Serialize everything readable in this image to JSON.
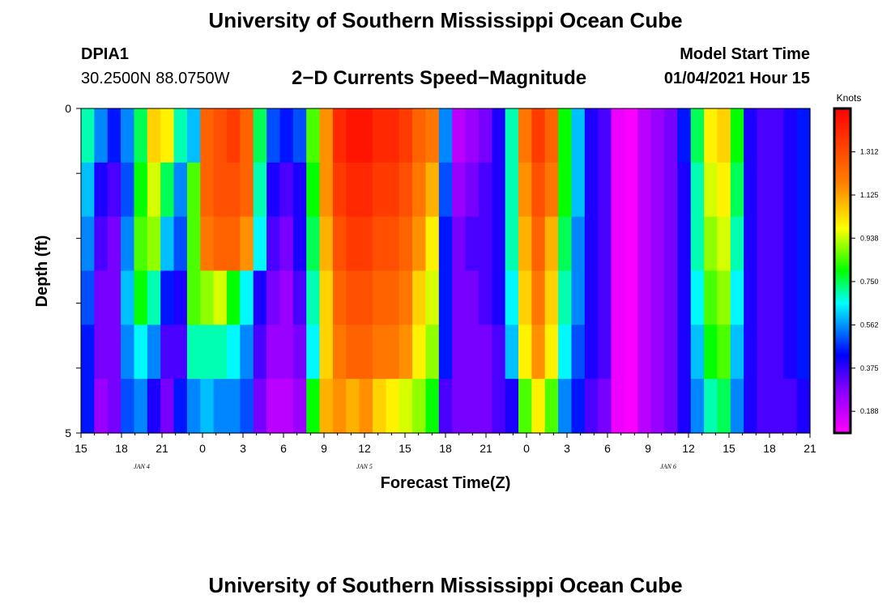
{
  "header": {
    "title": "University of Southern Mississippi Ocean Cube",
    "station_id": "DPIA1",
    "coordinates": "30.2500N 88.0750W",
    "subtitle": "2−D Currents Speed−Magnitude",
    "model_start_label": "Model Start Time",
    "model_start_value": "01/04/2021 Hour 15"
  },
  "footer": {
    "title": "University of Southern Mississippi Ocean Cube"
  },
  "chart_data": {
    "type": "heatmap",
    "title": "2−D Currents Speed−Magnitude",
    "xlabel": "Forecast Time(Z)",
    "ylabel": "Depth (ft)",
    "ylim": [
      0,
      5
    ],
    "y_tick_labels": [
      "0",
      "5"
    ],
    "x_tick_labels": [
      "15",
      "18",
      "21",
      "0",
      "3",
      "6",
      "9",
      "12",
      "15",
      "18",
      "21",
      "0",
      "3",
      "6",
      "9",
      "12",
      "15",
      "18",
      "21"
    ],
    "date_labels": [
      {
        "label": "JAN 4",
        "hour_index": 4.5
      },
      {
        "label": "JAN 5",
        "hour_index": 21
      },
      {
        "label": "JAN 6",
        "hour_index": 43.5
      }
    ],
    "colorbar": {
      "title": "Knots",
      "min": 0.094,
      "max": 1.5,
      "tick_values": [
        0.188,
        0.375,
        0.562,
        0.75,
        0.938,
        1.125,
        1.312
      ],
      "tick_labels": [
        "0.188",
        "0.375",
        "0.562",
        "0.750",
        "0.938",
        "1.125",
        "1.312"
      ]
    },
    "speed_profiles": [
      [
        0.7,
        0.55,
        0.45,
        0.55,
        0.75,
        1.05,
        1.0,
        0.7,
        0.6,
        1.25,
        1.3,
        1.35,
        1.25,
        0.75,
        0.5,
        0.45,
        0.5,
        0.85,
        1.15,
        1.4,
        1.45,
        1.45,
        1.4,
        1.4,
        1.35,
        1.25,
        1.2,
        0.55,
        0.2,
        0.25,
        0.3,
        0.4,
        0.7,
        1.2,
        1.35,
        1.25,
        0.8,
        0.6,
        0.4,
        0.35,
        0.12,
        0.1,
        0.2,
        0.25,
        0.3,
        0.45,
        0.75,
        1.0,
        1.05,
        0.8,
        0.4,
        0.35,
        0.35,
        0.4,
        0.45
      ],
      [
        0.6,
        0.4,
        0.35,
        0.5,
        0.8,
        0.95,
        0.75,
        0.55,
        0.85,
        1.25,
        1.3,
        1.3,
        1.25,
        0.7,
        0.4,
        0.35,
        0.4,
        0.8,
        1.15,
        1.35,
        1.4,
        1.4,
        1.35,
        1.35,
        1.3,
        1.2,
        1.1,
        0.5,
        0.25,
        0.3,
        0.35,
        0.4,
        0.7,
        1.15,
        1.3,
        1.2,
        0.8,
        0.6,
        0.4,
        0.35,
        0.12,
        0.1,
        0.2,
        0.25,
        0.3,
        0.4,
        0.7,
        0.95,
        1.0,
        0.75,
        0.4,
        0.35,
        0.35,
        0.4,
        0.45
      ],
      [
        0.55,
        0.35,
        0.3,
        0.55,
        0.85,
        0.9,
        0.6,
        0.5,
        0.85,
        1.2,
        1.25,
        1.25,
        1.15,
        0.65,
        0.35,
        0.3,
        0.4,
        0.75,
        1.1,
        1.3,
        1.35,
        1.35,
        1.3,
        1.3,
        1.25,
        1.15,
        1.0,
        0.45,
        0.3,
        0.35,
        0.35,
        0.4,
        0.7,
        1.1,
        1.25,
        1.1,
        0.75,
        0.55,
        0.4,
        0.35,
        0.12,
        0.1,
        0.2,
        0.25,
        0.3,
        0.4,
        0.7,
        0.9,
        0.95,
        0.7,
        0.4,
        0.35,
        0.35,
        0.4,
        0.45
      ],
      [
        0.5,
        0.3,
        0.3,
        0.6,
        0.8,
        0.7,
        0.45,
        0.4,
        0.85,
        0.9,
        0.95,
        0.8,
        0.65,
        0.4,
        0.3,
        0.25,
        0.35,
        0.7,
        1.05,
        1.25,
        1.3,
        1.3,
        1.25,
        1.25,
        1.2,
        1.05,
        0.95,
        0.45,
        0.3,
        0.3,
        0.35,
        0.4,
        0.65,
        1.05,
        1.2,
        1.05,
        0.7,
        0.55,
        0.4,
        0.35,
        0.12,
        0.1,
        0.2,
        0.25,
        0.3,
        0.4,
        0.65,
        0.85,
        0.9,
        0.65,
        0.4,
        0.35,
        0.35,
        0.4,
        0.45
      ],
      [
        0.45,
        0.3,
        0.3,
        0.55,
        0.65,
        0.55,
        0.35,
        0.35,
        0.7,
        0.7,
        0.7,
        0.65,
        0.55,
        0.35,
        0.25,
        0.25,
        0.3,
        0.65,
        1.05,
        1.2,
        1.25,
        1.25,
        1.2,
        1.2,
        1.15,
        1.0,
        0.9,
        0.45,
        0.3,
        0.3,
        0.3,
        0.35,
        0.6,
        1.0,
        1.15,
        1.0,
        0.65,
        0.5,
        0.4,
        0.35,
        0.12,
        0.1,
        0.2,
        0.25,
        0.3,
        0.4,
        0.6,
        0.8,
        0.85,
        0.6,
        0.4,
        0.35,
        0.35,
        0.4,
        0.45
      ],
      [
        0.45,
        0.25,
        0.3,
        0.5,
        0.55,
        0.4,
        0.3,
        0.45,
        0.55,
        0.6,
        0.55,
        0.55,
        0.5,
        0.3,
        0.2,
        0.2,
        0.25,
        0.8,
        1.1,
        1.15,
        1.1,
        1.15,
        1.05,
        1.0,
        0.95,
        0.9,
        0.8,
        0.35,
        0.3,
        0.3,
        0.3,
        0.35,
        0.4,
        0.85,
        1.0,
        0.85,
        0.55,
        0.45,
        0.35,
        0.3,
        0.12,
        0.1,
        0.2,
        0.25,
        0.3,
        0.4,
        0.55,
        0.7,
        0.75,
        0.55,
        0.4,
        0.35,
        0.35,
        0.35,
        0.4
      ]
    ]
  }
}
